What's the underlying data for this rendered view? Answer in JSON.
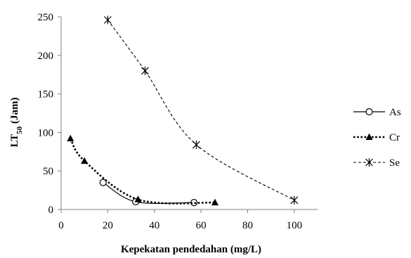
{
  "chart_data": {
    "type": "line",
    "xlabel": "Kepekatan  pendedahan  (mg/L)",
    "ylabel_main": "LT",
    "ylabel_sub": "50",
    "ylabel_rest": " (Jam)",
    "xlim": [
      0,
      110
    ],
    "ylim": [
      0,
      250
    ],
    "xticks": [
      0,
      20,
      40,
      60,
      80,
      100
    ],
    "yticks": [
      0,
      50,
      100,
      150,
      200,
      250
    ],
    "grid": false,
    "legend_position": "right",
    "series": [
      {
        "name": "As",
        "marker": "open-circle",
        "line": "solid",
        "points": [
          [
            18,
            35
          ],
          [
            32,
            10
          ],
          [
            57,
            9
          ]
        ]
      },
      {
        "name": "Cr",
        "marker": "filled-triangle",
        "line": "dotted",
        "points": [
          [
            4,
            92
          ],
          [
            10,
            63
          ],
          [
            33,
            13
          ],
          [
            66,
            9
          ]
        ]
      },
      {
        "name": "Se",
        "marker": "asterisk",
        "line": "dashed",
        "points": [
          [
            20,
            246
          ],
          [
            36,
            180
          ],
          [
            58,
            84
          ],
          [
            100,
            12
          ]
        ]
      }
    ]
  }
}
